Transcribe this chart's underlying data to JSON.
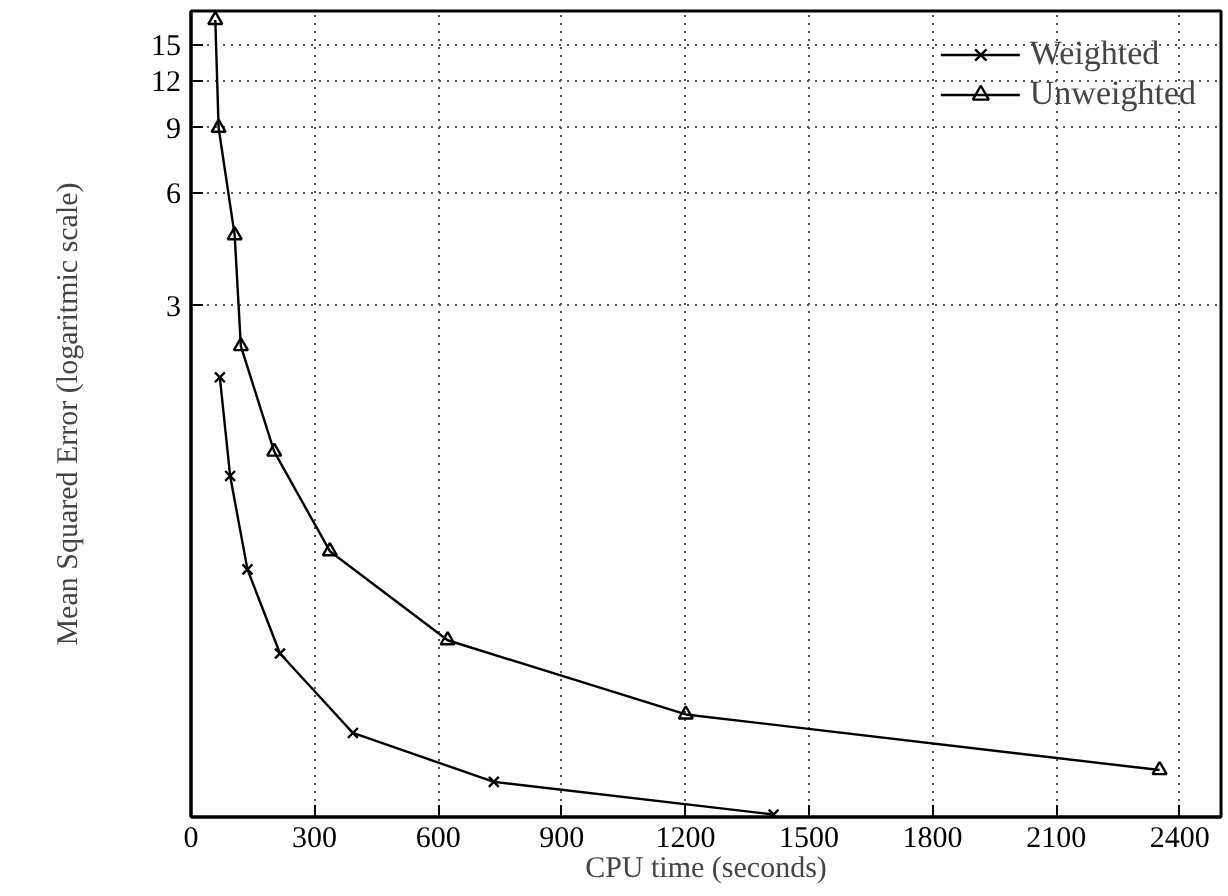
{
  "chart_data": {
    "type": "line",
    "xlabel": "CPU time (seconds)",
    "ylabel": "Mean Squared Error (logaritmic scale)",
    "xlim": [
      0,
      2500
    ],
    "xticks": [
      0,
      300,
      600,
      900,
      1200,
      1500,
      1800,
      2100,
      2400
    ],
    "ylim": [
      0.128,
      18.5
    ],
    "yticks": [
      3,
      6,
      9,
      12,
      15
    ],
    "log": "y",
    "grid": true,
    "legend": "top right",
    "line_style": "solid",
    "series": [
      {
        "name": "Weighted",
        "color": "#000000",
        "marker": "cross",
        "x": [
          70,
          95,
          137,
          216,
          393,
          735,
          1414
        ],
        "values": [
          1.93,
          1.05,
          0.59,
          0.351,
          0.215,
          0.159,
          0.13
        ]
      },
      {
        "name": "Unweighted",
        "color": "#000000",
        "marker": "triangle",
        "x": [
          59,
          67,
          106,
          121,
          202,
          337,
          623,
          1201,
          2351
        ],
        "values": [
          17.5,
          9,
          4.64,
          2.34,
          1.22,
          0.66,
          0.381,
          0.241,
          0.171
        ]
      }
    ]
  }
}
